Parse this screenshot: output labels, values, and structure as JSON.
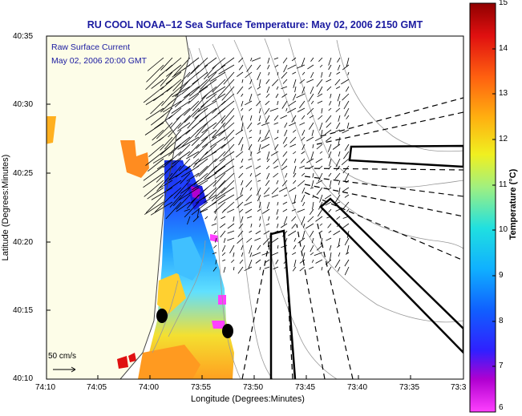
{
  "title": "RU COOL  NOAA–12  Sea Surface Temperature:  May 02, 2006 2150 GMT",
  "annotation": {
    "line1": "Raw Surface Current",
    "line2": "May 02, 2006 20:00 GMT"
  },
  "scale_arrow_label": "50 cm/s",
  "axes": {
    "xlabel": "Longitude (Degrees:Minutes)",
    "ylabel": "Latitude (Degrees:Minutes)",
    "x_ticks": [
      "74:10",
      "74:05",
      "74:00",
      "73:55",
      "73:50",
      "73:45",
      "73:40",
      "73:35",
      "73:3"
    ],
    "y_ticks": [
      "40:35",
      "40:30",
      "40:25",
      "40:20",
      "40:15",
      "40:10"
    ]
  },
  "colorbar": {
    "label": "Temperature (°C)",
    "ticks": [
      "15",
      "14",
      "13",
      "12",
      "11",
      "10",
      "9",
      "8",
      "7",
      "6"
    ],
    "min": 6,
    "max": 15
  },
  "colors": {
    "title_text": "#1a1aa0",
    "land": "#fdfde8",
    "water": "#ffffff"
  }
}
